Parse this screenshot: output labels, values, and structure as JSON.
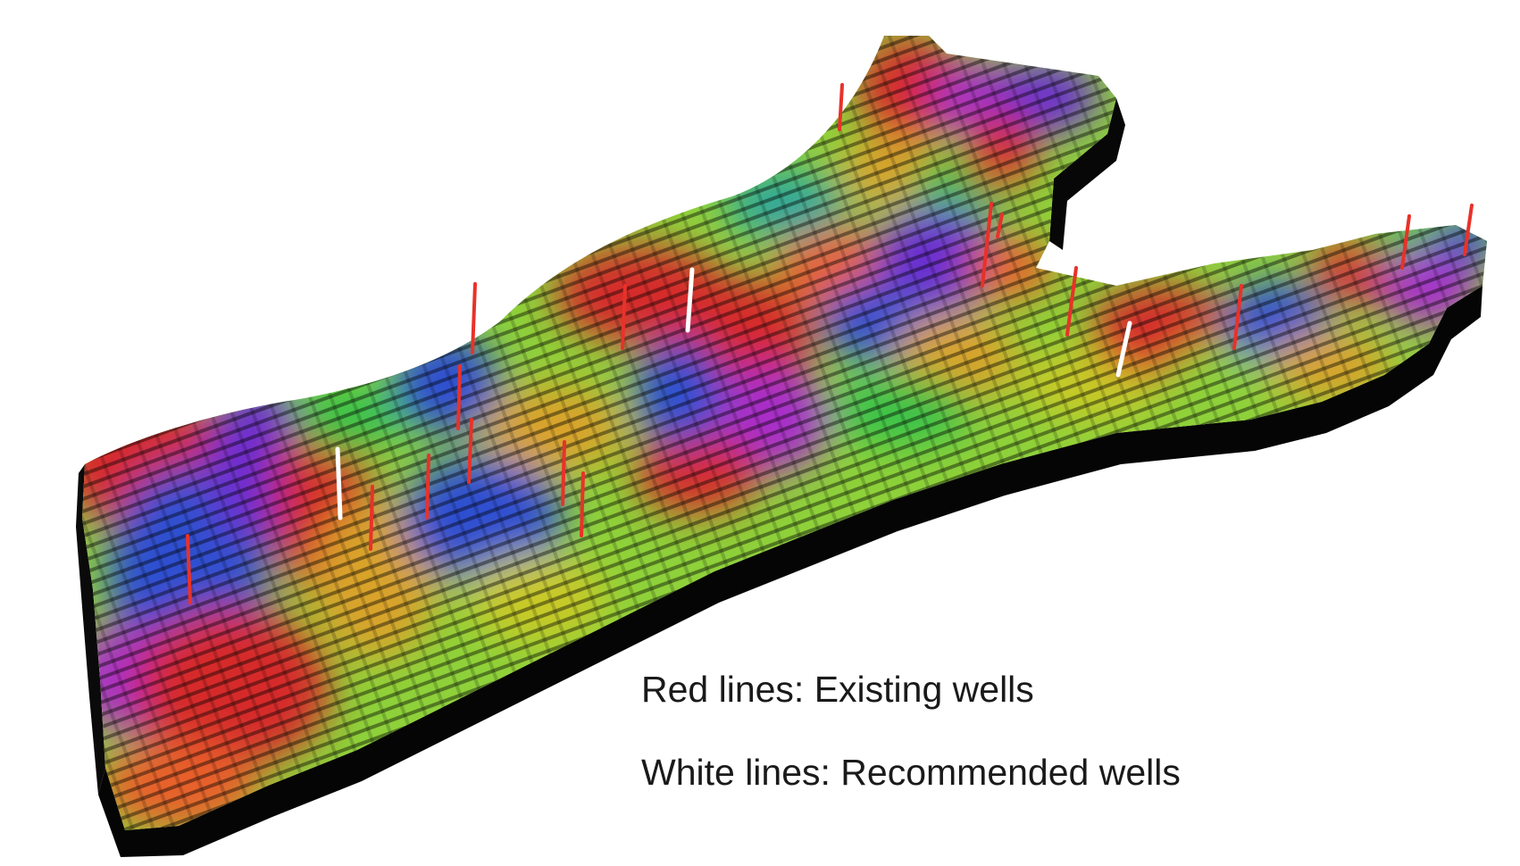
{
  "figure": {
    "subject": "3D reservoir grid model colored by property value",
    "colors": {
      "background": "#ffffff",
      "existing_well": "#e8322a",
      "recommended_well": "#ffffff",
      "block_side": "#000000",
      "palette": [
        "#d62a2a",
        "#e8602a",
        "#d9a32a",
        "#c9c928",
        "#8ed13a",
        "#37c24a",
        "#2fa89a",
        "#2f4fd0",
        "#6a2fd0",
        "#a72fc9",
        "#d62f8a"
      ]
    }
  },
  "legend": {
    "existing_wells_label": "Red lines: Existing wells",
    "recommended_wells_label": "White lines: Recommended wells"
  },
  "wells": {
    "existing_count": 16,
    "recommended_count": 3
  }
}
